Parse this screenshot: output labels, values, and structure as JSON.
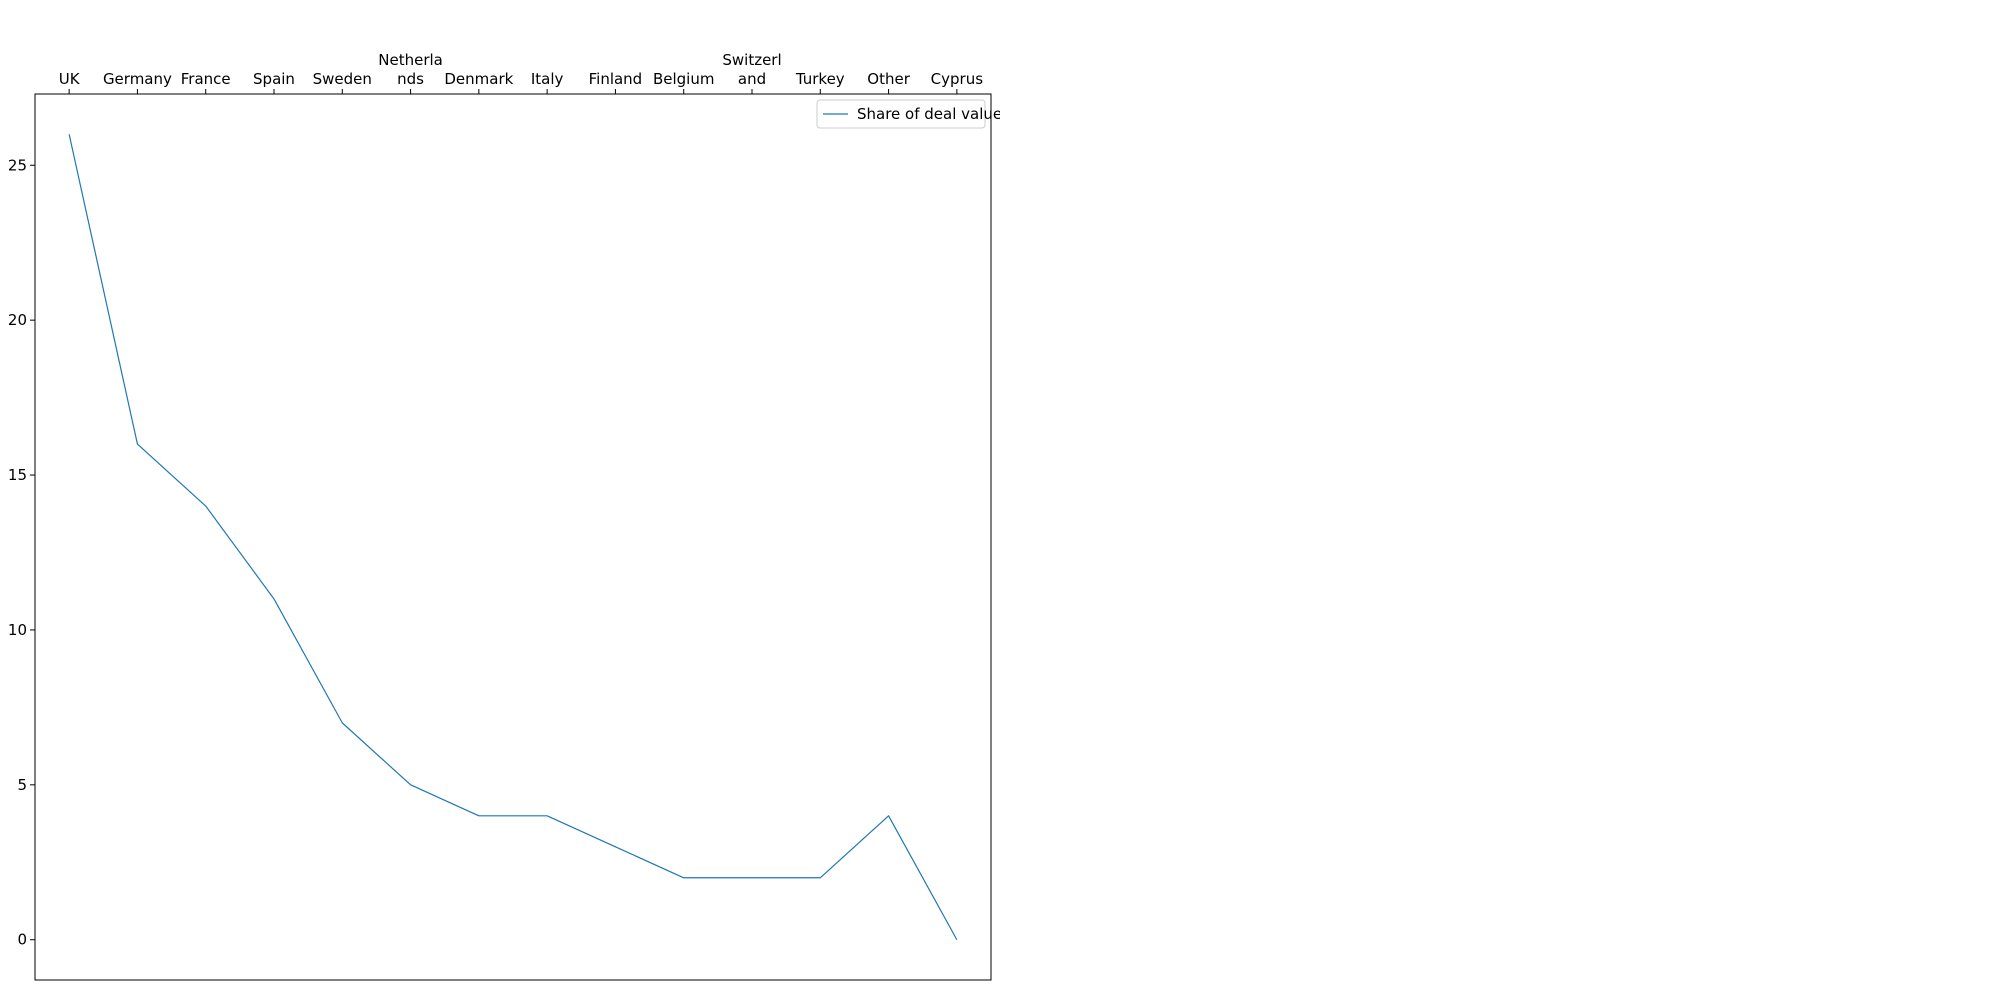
{
  "chart_data": {
    "type": "line",
    "categories": [
      "UK",
      "Germany",
      "France",
      "Spain",
      "Sweden",
      "Netherlands",
      "Denmark",
      "Italy",
      "Finland",
      "Belgium",
      "Switzerland",
      "Turkey",
      "Other",
      "Cyprus"
    ],
    "category_labels_wrapped": [
      [
        "UK"
      ],
      [
        "Germany"
      ],
      [
        "France"
      ],
      [
        "Spain"
      ],
      [
        "Sweden"
      ],
      [
        "Netherla",
        "nds"
      ],
      [
        "Denmark"
      ],
      [
        "Italy"
      ],
      [
        "Finland"
      ],
      [
        "Belgium"
      ],
      [
        "Switzerl",
        "and"
      ],
      [
        "Turkey"
      ],
      [
        "Other"
      ],
      [
        "Cyprus"
      ]
    ],
    "series": [
      {
        "name": "Share of deal value",
        "values": [
          26,
          16,
          14,
          11,
          7,
          5,
          4,
          4,
          3,
          2,
          2,
          2,
          4,
          0
        ],
        "color": "#1f77b4"
      }
    ],
    "x_axis_position": "top",
    "yticks": [
      0,
      5,
      10,
      15,
      20,
      25
    ],
    "ylim": [
      -1.3,
      27.3
    ],
    "legend_position": "top-right",
    "grid": false
  }
}
